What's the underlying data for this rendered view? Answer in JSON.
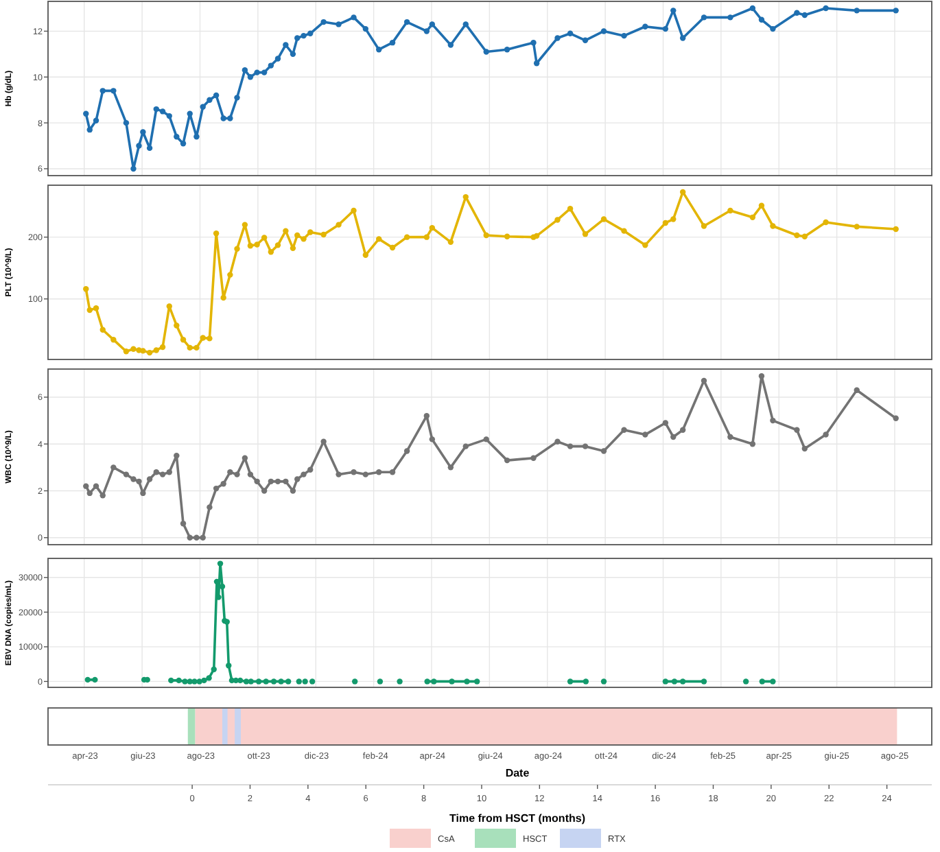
{
  "chart_data": [
    {
      "type": "line",
      "ylabel": "Hb (g/dL)",
      "ylim": [
        5.7,
        13.3
      ],
      "yticks": [
        6,
        8,
        10,
        12
      ],
      "xlim": [
        -4.98,
        25.55
      ],
      "xticks": [
        -3.73,
        -1.73,
        0.27,
        2.27,
        4.27,
        6.27,
        8.27,
        10.27,
        12.27,
        14.27,
        16.27,
        18.27,
        20.27,
        22.27,
        24.27
      ],
      "grid": true,
      "marker": "circle",
      "tick_labels": "y",
      "series": [
        {
          "color": "#1f6fb0",
          "x": [
            -3.67,
            -3.54,
            -3.32,
            -3.09,
            -2.72,
            -2.28,
            -2.03,
            -1.84,
            -1.7,
            -1.47,
            -1.24,
            -1.02,
            -0.79,
            -0.54,
            -0.31,
            -0.08,
            0.15,
            0.37,
            0.6,
            0.83,
            1.08,
            1.31,
            1.55,
            1.82,
            2.01,
            2.24,
            2.49,
            2.72,
            2.96,
            3.23,
            3.48,
            3.63,
            3.85,
            4.08,
            4.54,
            5.06,
            5.58,
            5.99,
            6.45,
            6.92,
            7.42,
            8.1,
            8.29,
            8.93,
            9.45,
            10.16,
            10.88,
            11.79,
            11.9,
            12.62,
            13.06,
            13.58,
            14.22,
            14.92,
            15.65,
            16.35,
            16.62,
            16.95,
            17.68,
            18.59,
            19.36,
            19.67,
            20.06,
            20.89,
            21.16,
            21.89,
            22.96,
            24.31
          ],
          "values": [
            8.4,
            7.7,
            8.1,
            9.4,
            9.4,
            8.0,
            6.0,
            7.0,
            7.6,
            6.9,
            8.6,
            8.5,
            8.3,
            7.4,
            7.1,
            8.4,
            7.4,
            8.7,
            9.0,
            9.2,
            8.2,
            8.2,
            9.1,
            10.3,
            10.0,
            10.2,
            10.2,
            10.5,
            10.8,
            11.4,
            11.0,
            11.7,
            11.8,
            11.9,
            12.4,
            12.3,
            12.6,
            12.1,
            11.2,
            11.5,
            12.4,
            12.0,
            12.3,
            11.4,
            12.3,
            11.1,
            11.2,
            11.5,
            10.6,
            11.7,
            11.9,
            11.6,
            12.0,
            11.8,
            12.2,
            12.1,
            12.9,
            11.7,
            12.6,
            12.6,
            13.0,
            12.5,
            12.1,
            12.8,
            12.7,
            13.0,
            12.9,
            12.9
          ]
        }
      ]
    },
    {
      "type": "line",
      "ylabel": "PLT (10^9/L)",
      "ylim": [
        2,
        284
      ],
      "yticks": [
        100,
        200
      ],
      "xlim": [
        -4.98,
        25.55
      ],
      "xticks": [
        -3.73,
        -1.73,
        0.27,
        2.27,
        4.27,
        6.27,
        8.27,
        10.27,
        12.27,
        14.27,
        16.27,
        18.27,
        20.27,
        22.27,
        24.27
      ],
      "grid": true,
      "marker": "circle",
      "tick_labels": "y",
      "series": [
        {
          "color": "#e3b505",
          "x": [
            -3.67,
            -3.54,
            -3.32,
            -3.09,
            -2.72,
            -2.28,
            -2.03,
            -1.84,
            -1.7,
            -1.47,
            -1.24,
            -1.02,
            -0.79,
            -0.54,
            -0.31,
            -0.08,
            0.15,
            0.37,
            0.6,
            0.83,
            1.08,
            1.31,
            1.55,
            1.82,
            2.01,
            2.24,
            2.49,
            2.72,
            2.96,
            3.23,
            3.48,
            3.63,
            3.85,
            4.08,
            4.54,
            5.06,
            5.58,
            5.99,
            6.45,
            6.92,
            7.42,
            8.1,
            8.29,
            8.93,
            9.45,
            10.16,
            10.88,
            11.79,
            11.9,
            12.62,
            13.06,
            13.58,
            14.22,
            14.92,
            15.65,
            16.35,
            16.62,
            16.95,
            17.68,
            18.59,
            19.36,
            19.67,
            20.06,
            20.89,
            21.16,
            21.89,
            22.96,
            24.31
          ],
          "values": [
            116,
            82,
            85,
            50,
            34,
            15,
            19,
            17,
            16,
            13,
            17,
            22,
            88,
            57,
            34,
            21,
            21,
            37,
            36,
            206,
            102,
            139,
            181,
            220,
            186,
            188,
            199,
            176,
            187,
            210,
            182,
            203,
            197,
            208,
            204,
            220,
            243,
            171,
            197,
            183,
            200,
            200,
            215,
            192,
            265,
            203,
            201,
            200,
            202,
            228,
            246,
            205,
            229,
            210,
            187,
            223,
            229,
            273,
            218,
            243,
            232,
            251,
            218,
            203,
            201,
            224,
            217,
            213
          ]
        }
      ]
    },
    {
      "type": "line",
      "ylabel": "WBC (10^9/L)",
      "ylim": [
        -0.3,
        7.2
      ],
      "yticks": [
        0,
        2,
        4,
        6
      ],
      "xlim": [
        -4.98,
        25.55
      ],
      "xticks": [
        -3.73,
        -1.73,
        0.27,
        2.27,
        4.27,
        6.27,
        8.27,
        10.27,
        12.27,
        14.27,
        16.27,
        18.27,
        20.27,
        22.27,
        24.27
      ],
      "grid": true,
      "marker": "circle",
      "tick_labels": "y",
      "series": [
        {
          "color": "#737373",
          "x": [
            -3.67,
            -3.54,
            -3.32,
            -3.09,
            -2.72,
            -2.28,
            -2.03,
            -1.84,
            -1.7,
            -1.47,
            -1.24,
            -1.02,
            -0.79,
            -0.54,
            -0.31,
            -0.08,
            0.15,
            0.37,
            0.6,
            0.83,
            1.08,
            1.31,
            1.55,
            1.82,
            2.01,
            2.24,
            2.49,
            2.72,
            2.96,
            3.23,
            3.48,
            3.63,
            3.85,
            4.08,
            4.54,
            5.06,
            5.58,
            5.99,
            6.45,
            6.92,
            7.42,
            8.1,
            8.29,
            8.93,
            9.45,
            10.16,
            10.88,
            11.79,
            12.62,
            13.06,
            13.58,
            14.22,
            14.92,
            15.65,
            16.35,
            16.62,
            16.95,
            17.68,
            18.59,
            19.36,
            19.67,
            20.06,
            20.89,
            21.16,
            21.89,
            22.96,
            24.31
          ],
          "values": [
            2.2,
            1.9,
            2.2,
            1.8,
            3.0,
            2.7,
            2.5,
            2.4,
            1.9,
            2.5,
            2.8,
            2.7,
            2.8,
            3.5,
            0.6,
            0.0,
            0.0,
            0.0,
            1.3,
            2.1,
            2.3,
            2.8,
            2.7,
            3.4,
            2.7,
            2.4,
            2.0,
            2.4,
            2.4,
            2.4,
            2.0,
            2.5,
            2.7,
            2.9,
            4.1,
            2.7,
            2.8,
            2.7,
            2.8,
            2.8,
            3.7,
            5.2,
            4.2,
            3.0,
            3.9,
            4.2,
            3.3,
            3.4,
            4.1,
            3.9,
            3.9,
            3.7,
            4.6,
            4.4,
            4.9,
            4.3,
            4.6,
            6.7,
            4.3,
            4.0,
            6.9,
            5.0,
            4.6,
            3.8,
            4.4,
            6.3,
            5.1
          ]
        }
      ]
    },
    {
      "type": "line",
      "ylabel": "EBV DNA (copies/mL)",
      "ylim": [
        -1700,
        35500
      ],
      "yticks": [
        0,
        10000,
        20000,
        30000
      ],
      "xlim": [
        -4.98,
        25.55
      ],
      "xticks": [
        -3.73,
        -1.73,
        0.27,
        2.27,
        4.27,
        6.27,
        8.27,
        10.27,
        12.27,
        14.27,
        16.27,
        18.27,
        20.27,
        22.27,
        24.27
      ],
      "grid": true,
      "marker": "circle",
      "tick_labels": "y",
      "series": [
        {
          "color": "#139a6c",
          "x": [
            -3.61,
            -3.36,
            -2.5,
            -1.66,
            -1.6,
            -1.55,
            -1.1,
            -0.73,
            -0.46,
            -0.25,
            -0.08,
            0.08,
            0.25,
            0.41,
            0.58,
            0.75,
            0.85,
            0.91,
            0.97,
            1.04,
            1.12,
            1.2,
            1.26,
            1.37,
            1.51,
            1.66,
            1.87,
            2.03,
            2.3,
            2.55,
            2.82,
            3.07,
            3.32,
            3.5,
            3.69,
            3.8,
            3.9,
            4.0,
            4.15,
            5.0,
            5.62,
            6.0,
            6.49,
            6.8,
            7.17,
            7.6,
            8.12,
            8.35,
            8.97,
            9.49,
            9.84,
            11.0,
            13.06,
            13.6,
            13.9,
            14.22,
            15.0,
            16.35,
            16.66,
            16.95,
            17.68,
            18.5,
            19.13,
            19.4,
            19.69,
            20.06
          ],
          "values": [
            500,
            500,
            null,
            500,
            null,
            500,
            null,
            300,
            300,
            0,
            0,
            0,
            0,
            300,
            1000,
            3500,
            28800,
            24300,
            34000,
            27400,
            17500,
            17200,
            4600,
            300,
            300,
            300,
            0,
            0,
            0,
            0,
            0,
            0,
            0,
            null,
            0,
            null,
            0,
            null,
            0,
            null,
            0,
            null,
            0,
            null,
            0,
            null,
            0,
            0,
            0,
            0,
            0,
            null,
            0,
            0,
            null,
            0,
            null,
            0,
            0,
            0,
            0,
            null,
            0,
            null,
            0,
            0
          ]
        }
      ]
    },
    {
      "type": "bar",
      "orientation": "horizontal",
      "categories": [
        null
      ],
      "x2label": "Date",
      "xlabel": "Time from HSCT (months)",
      "x2lim": [
        "2023-02-21",
        "2025-09-09"
      ],
      "x2ticks": [
        {
          "value": "2023-04-01",
          "label": "apr-23"
        },
        {
          "value": "2023-06-01",
          "label": "giu-23"
        },
        {
          "value": "2023-08-01",
          "label": "ago-23"
        },
        {
          "value": "2023-10-01",
          "label": "ott-23"
        },
        {
          "value": "2023-12-01",
          "label": "dic-23"
        },
        {
          "value": "2024-02-01",
          "label": "feb-24"
        },
        {
          "value": "2024-04-01",
          "label": "apr-24"
        },
        {
          "value": "2024-06-01",
          "label": "giu-24"
        },
        {
          "value": "2024-08-01",
          "label": "ago-24"
        },
        {
          "value": "2024-10-01",
          "label": "ott-24"
        },
        {
          "value": "2024-12-01",
          "label": "dic-24"
        },
        {
          "value": "2025-02-01",
          "label": "feb-25"
        },
        {
          "value": "2025-04-01",
          "label": "apr-25"
        },
        {
          "value": "2025-06-01",
          "label": "giu-25"
        },
        {
          "value": "2025-08-01",
          "label": "ago-25"
        }
      ],
      "xlim": [
        -4.98,
        25.55
      ],
      "xticks": [
        0,
        2,
        4,
        6,
        8,
        10,
        12,
        14,
        16,
        18,
        20,
        22,
        24
      ],
      "legend": "bottom",
      "series": [
        {
          "name": "CsA",
          "color": "#f9d0cd",
          "base": [
            0.1
          ],
          "values": [
            24.25
          ]
        },
        {
          "name": "HSCT",
          "color": "#a8e0bb",
          "base": [
            -0.15
          ],
          "values": [
            0.25
          ]
        },
        {
          "name": "RTX",
          "color": "#c6d4f2",
          "base": [
            1.04
          ],
          "values": [
            0.18
          ]
        },
        {
          "color": "#c6d4f2",
          "base": [
            1.47
          ],
          "values": [
            0.21
          ]
        }
      ]
    }
  ]
}
